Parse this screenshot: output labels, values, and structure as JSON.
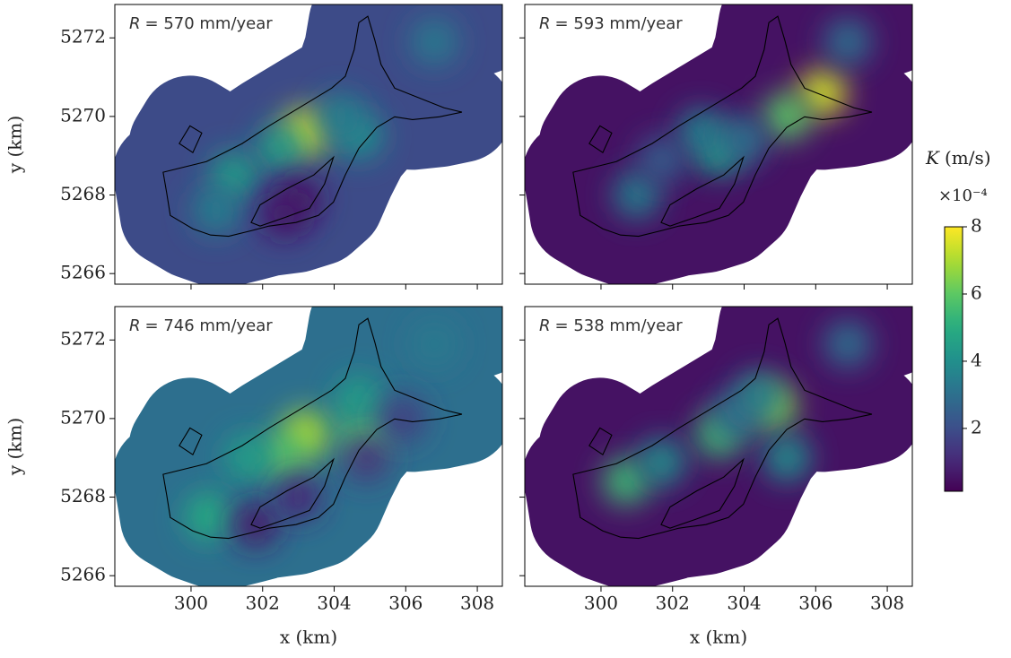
{
  "chart_data": [
    {
      "type": "heatmap",
      "annotation_symbol": "R",
      "annotation": "= 570 mm/year",
      "xlim": [
        297.87,
        308.7
      ],
      "ylim": [
        5265.73,
        5272.85
      ],
      "xticks": [
        300,
        302,
        304,
        306,
        308
      ],
      "yticks": [
        5266,
        5268,
        5270,
        5272
      ],
      "ylabel": "y (km)",
      "show_xticklabels": false,
      "show_yticklabels": true,
      "background_value": 1.9,
      "hotspots": {
        "x": [
          303.2,
          302.5,
          301.2,
          300.7,
          304.7,
          304.2,
          303.0,
          302.6,
          306.8
        ],
        "y": [
          5269.6,
          5269.2,
          5268.5,
          5267.6,
          5269.5,
          5270.0,
          5267.9,
          5267.5,
          5271.9
        ],
        "values": [
          7.5,
          4.5,
          4.5,
          3.5,
          4.0,
          3.5,
          0.5,
          0.6,
          3.3
        ]
      }
    },
    {
      "type": "heatmap",
      "annotation_symbol": "R",
      "annotation": "= 593 mm/year",
      "xlim": [
        297.87,
        308.7
      ],
      "ylim": [
        5265.73,
        5272.85
      ],
      "xticks": [
        300,
        302,
        304,
        306,
        308
      ],
      "yticks": [
        5266,
        5268,
        5270,
        5272
      ],
      "show_xticklabels": false,
      "show_yticklabels": false,
      "background_value": 0.5,
      "hotspots": {
        "x": [
          306.2,
          305.2,
          303.3,
          302.8,
          301.0,
          304.0,
          301.7,
          306.9
        ],
        "y": [
          5270.6,
          5270.0,
          5269.1,
          5269.6,
          5268.0,
          5269.4,
          5268.9,
          5271.9
        ],
        "values": [
          7.5,
          6.0,
          4.5,
          3.5,
          3.5,
          3.0,
          2.5,
          3.0
        ]
      }
    },
    {
      "type": "heatmap",
      "annotation_symbol": "R",
      "annotation": "= 746 mm/year",
      "xlim": [
        297.87,
        308.7
      ],
      "ylim": [
        5265.73,
        5272.85
      ],
      "xticks": [
        300,
        302,
        304,
        306,
        308
      ],
      "yticks": [
        5266,
        5268,
        5270,
        5272
      ],
      "xlabel": "x (km)",
      "ylabel": "y (km)",
      "show_xticklabels": true,
      "show_yticklabels": true,
      "background_value": 3.0,
      "hotspots": {
        "x": [
          303.2,
          302.6,
          304.8,
          301.6,
          300.5,
          304.7,
          301.8,
          303.0,
          304.9,
          305.9,
          306.8
        ],
        "y": [
          5269.6,
          5269.0,
          5269.6,
          5269.0,
          5267.5,
          5270.5,
          5267.3,
          5268.0,
          5269.0,
          5270.0,
          5271.9
        ],
        "values": [
          7.0,
          6.0,
          6.0,
          4.5,
          5.0,
          4.5,
          0.7,
          1.0,
          1.2,
          1.5,
          3.3
        ]
      }
    },
    {
      "type": "heatmap",
      "annotation_symbol": "R",
      "annotation": "= 538 mm/year",
      "xlim": [
        297.87,
        308.7
      ],
      "ylim": [
        5265.73,
        5272.85
      ],
      "xticks": [
        300,
        302,
        304,
        306,
        308
      ],
      "yticks": [
        5266,
        5268,
        5270,
        5272
      ],
      "xlabel": "x (km)",
      "show_xticklabels": true,
      "show_yticklabels": false,
      "background_value": 0.5,
      "hotspots": {
        "x": [
          304.8,
          303.3,
          300.7,
          301.7,
          305.2,
          303.8,
          304.4,
          306.9
        ],
        "y": [
          5270.3,
          5269.6,
          5268.4,
          5268.9,
          5269.0,
          5270.1,
          5270.6,
          5271.9
        ],
        "values": [
          6.5,
          5.5,
          5.5,
          4.0,
          4.0,
          3.0,
          3.5,
          3.0
        ]
      }
    }
  ],
  "outline": [
    {
      "x": [
        299.22,
        300.43,
        301.43,
        302.18,
        302.93,
        303.93,
        304.31,
        304.56,
        304.69,
        304.94,
        305.14,
        305.31,
        305.69,
        306.32,
        307.07,
        307.57,
        306.94,
        306.19,
        305.69,
        305.19,
        304.69,
        304.31,
        303.98,
        303.56,
        302.93,
        302.18,
        301.68,
        301.05,
        300.55,
        300.05,
        299.42,
        299.32
      ],
      "y": [
        5268.58,
        5268.85,
        5269.31,
        5269.76,
        5270.17,
        5270.72,
        5271.02,
        5271.7,
        5272.39,
        5272.55,
        5271.93,
        5271.32,
        5270.72,
        5270.49,
        5270.22,
        5270.11,
        5269.99,
        5269.92,
        5269.99,
        5269.72,
        5269.19,
        5268.51,
        5267.82,
        5267.48,
        5267.3,
        5267.21,
        5267.09,
        5266.95,
        5266.98,
        5267.14,
        5267.48,
        5268.05
      ]
    },
    {
      "x": [
        301.68,
        301.93,
        302.68,
        303.43,
        303.98,
        303.73,
        303.31,
        302.63,
        301.93
      ],
      "y": [
        5267.3,
        5267.75,
        5268.16,
        5268.51,
        5268.96,
        5268.28,
        5267.66,
        5267.43,
        5267.21
      ]
    },
    {
      "x": [
        299.67,
        299.97,
        300.3,
        300.05
      ],
      "y": [
        5269.31,
        5269.76,
        5269.58,
        5269.08
      ]
    }
  ],
  "colorbar": {
    "label_symbol": "K",
    "label": "(m/s)",
    "offset_text": "×10⁻⁴",
    "colormap": "viridis",
    "clim": [
      0.13,
      8
    ],
    "ticks": [
      2,
      4,
      6,
      8
    ]
  }
}
